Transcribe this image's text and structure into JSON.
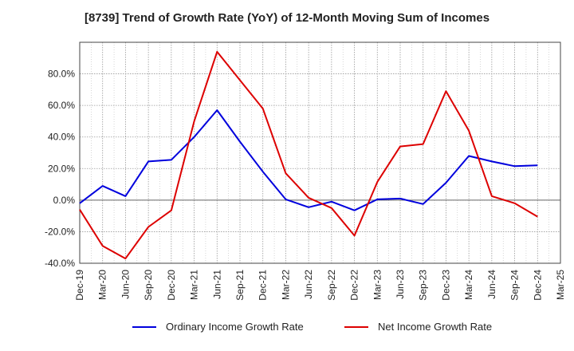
{
  "chart_data": {
    "type": "line",
    "title": "[8739]  Trend of Growth Rate (YoY) of 12-Month Moving Sum of Incomes",
    "x": [
      "Dec-19",
      "Mar-20",
      "Jun-20",
      "Sep-20",
      "Dec-20",
      "Mar-21",
      "Jun-21",
      "Sep-21",
      "Dec-21",
      "Mar-22",
      "Jun-22",
      "Sep-22",
      "Dec-22",
      "Mar-23",
      "Jun-23",
      "Sep-23",
      "Dec-23",
      "Mar-24",
      "Jun-24",
      "Sep-24",
      "Dec-24",
      "Mar-25"
    ],
    "series": [
      {
        "name": "Ordinary Income Growth Rate",
        "color": "#0000dd",
        "values": [
          -2,
          9,
          2.5,
          24.5,
          25.5,
          40,
          57,
          37,
          18,
          0.5,
          -4.5,
          -1,
          -6.5,
          0.5,
          1,
          -2.5,
          11,
          28,
          24.5,
          21.5,
          22,
          null
        ]
      },
      {
        "name": "Net Income Growth Rate",
        "color": "#dd0000",
        "values": [
          -6,
          -29,
          -37,
          -17,
          -6.5,
          50,
          94,
          76,
          58,
          17,
          1.5,
          -5,
          -22.5,
          11.5,
          34,
          35.5,
          69,
          44,
          2.5,
          -2,
          -10.5,
          null
        ]
      }
    ],
    "yticks": [
      "80.0%",
      "60.0%",
      "40.0%",
      "20.0%",
      "0.0%",
      "-20.0%",
      "-40.0%"
    ],
    "ylim": [
      -40,
      100
    ],
    "grid": true,
    "legend": "bottom"
  }
}
